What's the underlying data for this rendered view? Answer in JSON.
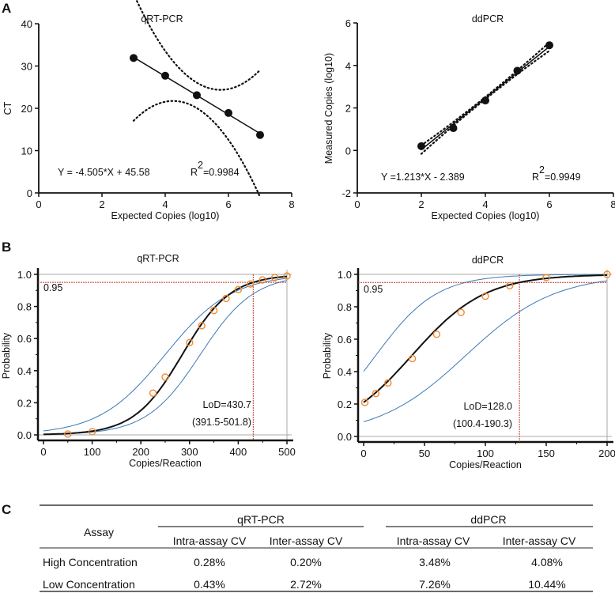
{
  "panel_labels": [
    "A",
    "B",
    "C"
  ],
  "colors": {
    "point_fill": "#111111",
    "probit_point": "#f08a30",
    "ci_curve": "#3a7ab8",
    "threshold": "#c0392b",
    "frame": "#aaaaaa"
  },
  "chart_data": [
    {
      "type": "scatter",
      "title": "qRT-PCR",
      "xlabel": "Expected Copies (log10)",
      "ylabel": "CT",
      "xlim": [
        0,
        8
      ],
      "ylim": [
        0,
        40
      ],
      "xticks": [
        "0",
        "2",
        "4",
        "6",
        "8"
      ],
      "yticks": [
        "0",
        "10",
        "20",
        "30",
        "40"
      ],
      "x": [
        3,
        4,
        5,
        6,
        7
      ],
      "y": [
        31.9,
        27.7,
        23.1,
        18.9,
        13.7
      ],
      "fit": {
        "slope": -4.505,
        "intercept": 45.58,
        "ci_halfwidth": [
          0.6,
          0.12
        ]
      },
      "equation": "Y = -4.505*X + 45.58",
      "r2_label": "R",
      "r2_sup": "2",
      "r2_value": "=0.9984"
    },
    {
      "type": "scatter",
      "title": "ddPCR",
      "xlabel": "Expected Copies (log10)",
      "ylabel": "Measured Copies (log10)",
      "xlim": [
        0,
        8
      ],
      "ylim": [
        -2,
        6
      ],
      "xticks": [
        "0",
        "2",
        "4",
        "6",
        "8"
      ],
      "yticks": [
        "-2",
        "0",
        "2",
        "4",
        "6"
      ],
      "x": [
        2,
        3,
        4,
        5,
        6
      ],
      "y": [
        0.2,
        1.05,
        2.35,
        3.75,
        4.95
      ],
      "fit": {
        "slope": 1.213,
        "intercept": -2.389,
        "ci_halfwidth": [
          0.2,
          0.05
        ]
      },
      "equation": "Y =1.213*X - 2.389",
      "r2_label": "R",
      "r2_sup": "2",
      "r2_value": "=0.9949"
    },
    {
      "type": "line",
      "title": "qRT-PCR",
      "xlabel": "Copies/Reaction",
      "ylabel": "Probability",
      "xlim": [
        0,
        500
      ],
      "ylim": [
        0,
        1
      ],
      "xticks": [
        "0",
        "100",
        "200",
        "300",
        "400",
        "500"
      ],
      "xtick_values": [
        0,
        100,
        200,
        300,
        400,
        500
      ],
      "yticks": [
        "0.0",
        "0.2",
        "0.4",
        "0.6",
        "0.8",
        "1.0"
      ],
      "x": [
        50,
        100,
        225,
        250,
        300,
        325,
        350,
        375,
        400,
        425,
        450,
        475,
        500
      ],
      "y": [
        0.005,
        0.02,
        0.26,
        0.36,
        0.575,
        0.68,
        0.775,
        0.85,
        0.905,
        0.94,
        0.965,
        0.98,
        0.99
      ],
      "fit_curve": {
        "midpoint": 285,
        "scale": 49.5
      },
      "ci_upper": {
        "midpoint": 250,
        "scale": 68
      },
      "ci_lower": {
        "midpoint": 322,
        "scale": 55
      },
      "threshold": 0.95,
      "threshold_label": "0.95",
      "lod": 430.7,
      "lod_label": "LoD=430.7",
      "lod_ci_label": "(391.5-501.8)"
    },
    {
      "type": "line",
      "title": "ddPCR",
      "xlabel": "Copies/Reaction",
      "ylabel": "Probability",
      "xlim": [
        0,
        200
      ],
      "ylim": [
        0,
        1
      ],
      "xticks": [
        "0",
        "50",
        "100",
        "150",
        "200"
      ],
      "xtick_values": [
        0,
        50,
        100,
        150,
        200
      ],
      "yticks": [
        "0.0",
        "0.2",
        "0.4",
        "0.6",
        "0.8",
        "1.0"
      ],
      "x": [
        1,
        10,
        20,
        40,
        60,
        80,
        100,
        120,
        150,
        200
      ],
      "y": [
        0.21,
        0.265,
        0.33,
        0.48,
        0.63,
        0.765,
        0.865,
        0.93,
        0.98,
        1.0
      ],
      "fit_curve": {
        "midpoint": 39.7,
        "scale": 30
      },
      "ci_upper": {
        "midpoint": 10,
        "scale": 25
      },
      "ci_lower": {
        "midpoint": 84,
        "scale": 36.4
      },
      "threshold": 0.95,
      "threshold_label": "0.95",
      "lod": 128.0,
      "lod_label": "LoD=128.0",
      "lod_ci_label": "(100.4-190.3)"
    }
  ],
  "table": {
    "row_header": "Assay",
    "groups": [
      "qRT-PCR",
      "ddPCR"
    ],
    "subheaders": [
      "Intra-assay CV",
      "Inter-assay CV",
      "Intra-assay CV",
      "Inter-assay CV"
    ],
    "rows": [
      {
        "label": "High Concentration",
        "values": [
          "0.28%",
          "0.20%",
          "3.48%",
          "4.08%"
        ]
      },
      {
        "label": "Low Concentration",
        "values": [
          "0.43%",
          "2.72%",
          "7.26%",
          "10.44%"
        ]
      }
    ]
  }
}
